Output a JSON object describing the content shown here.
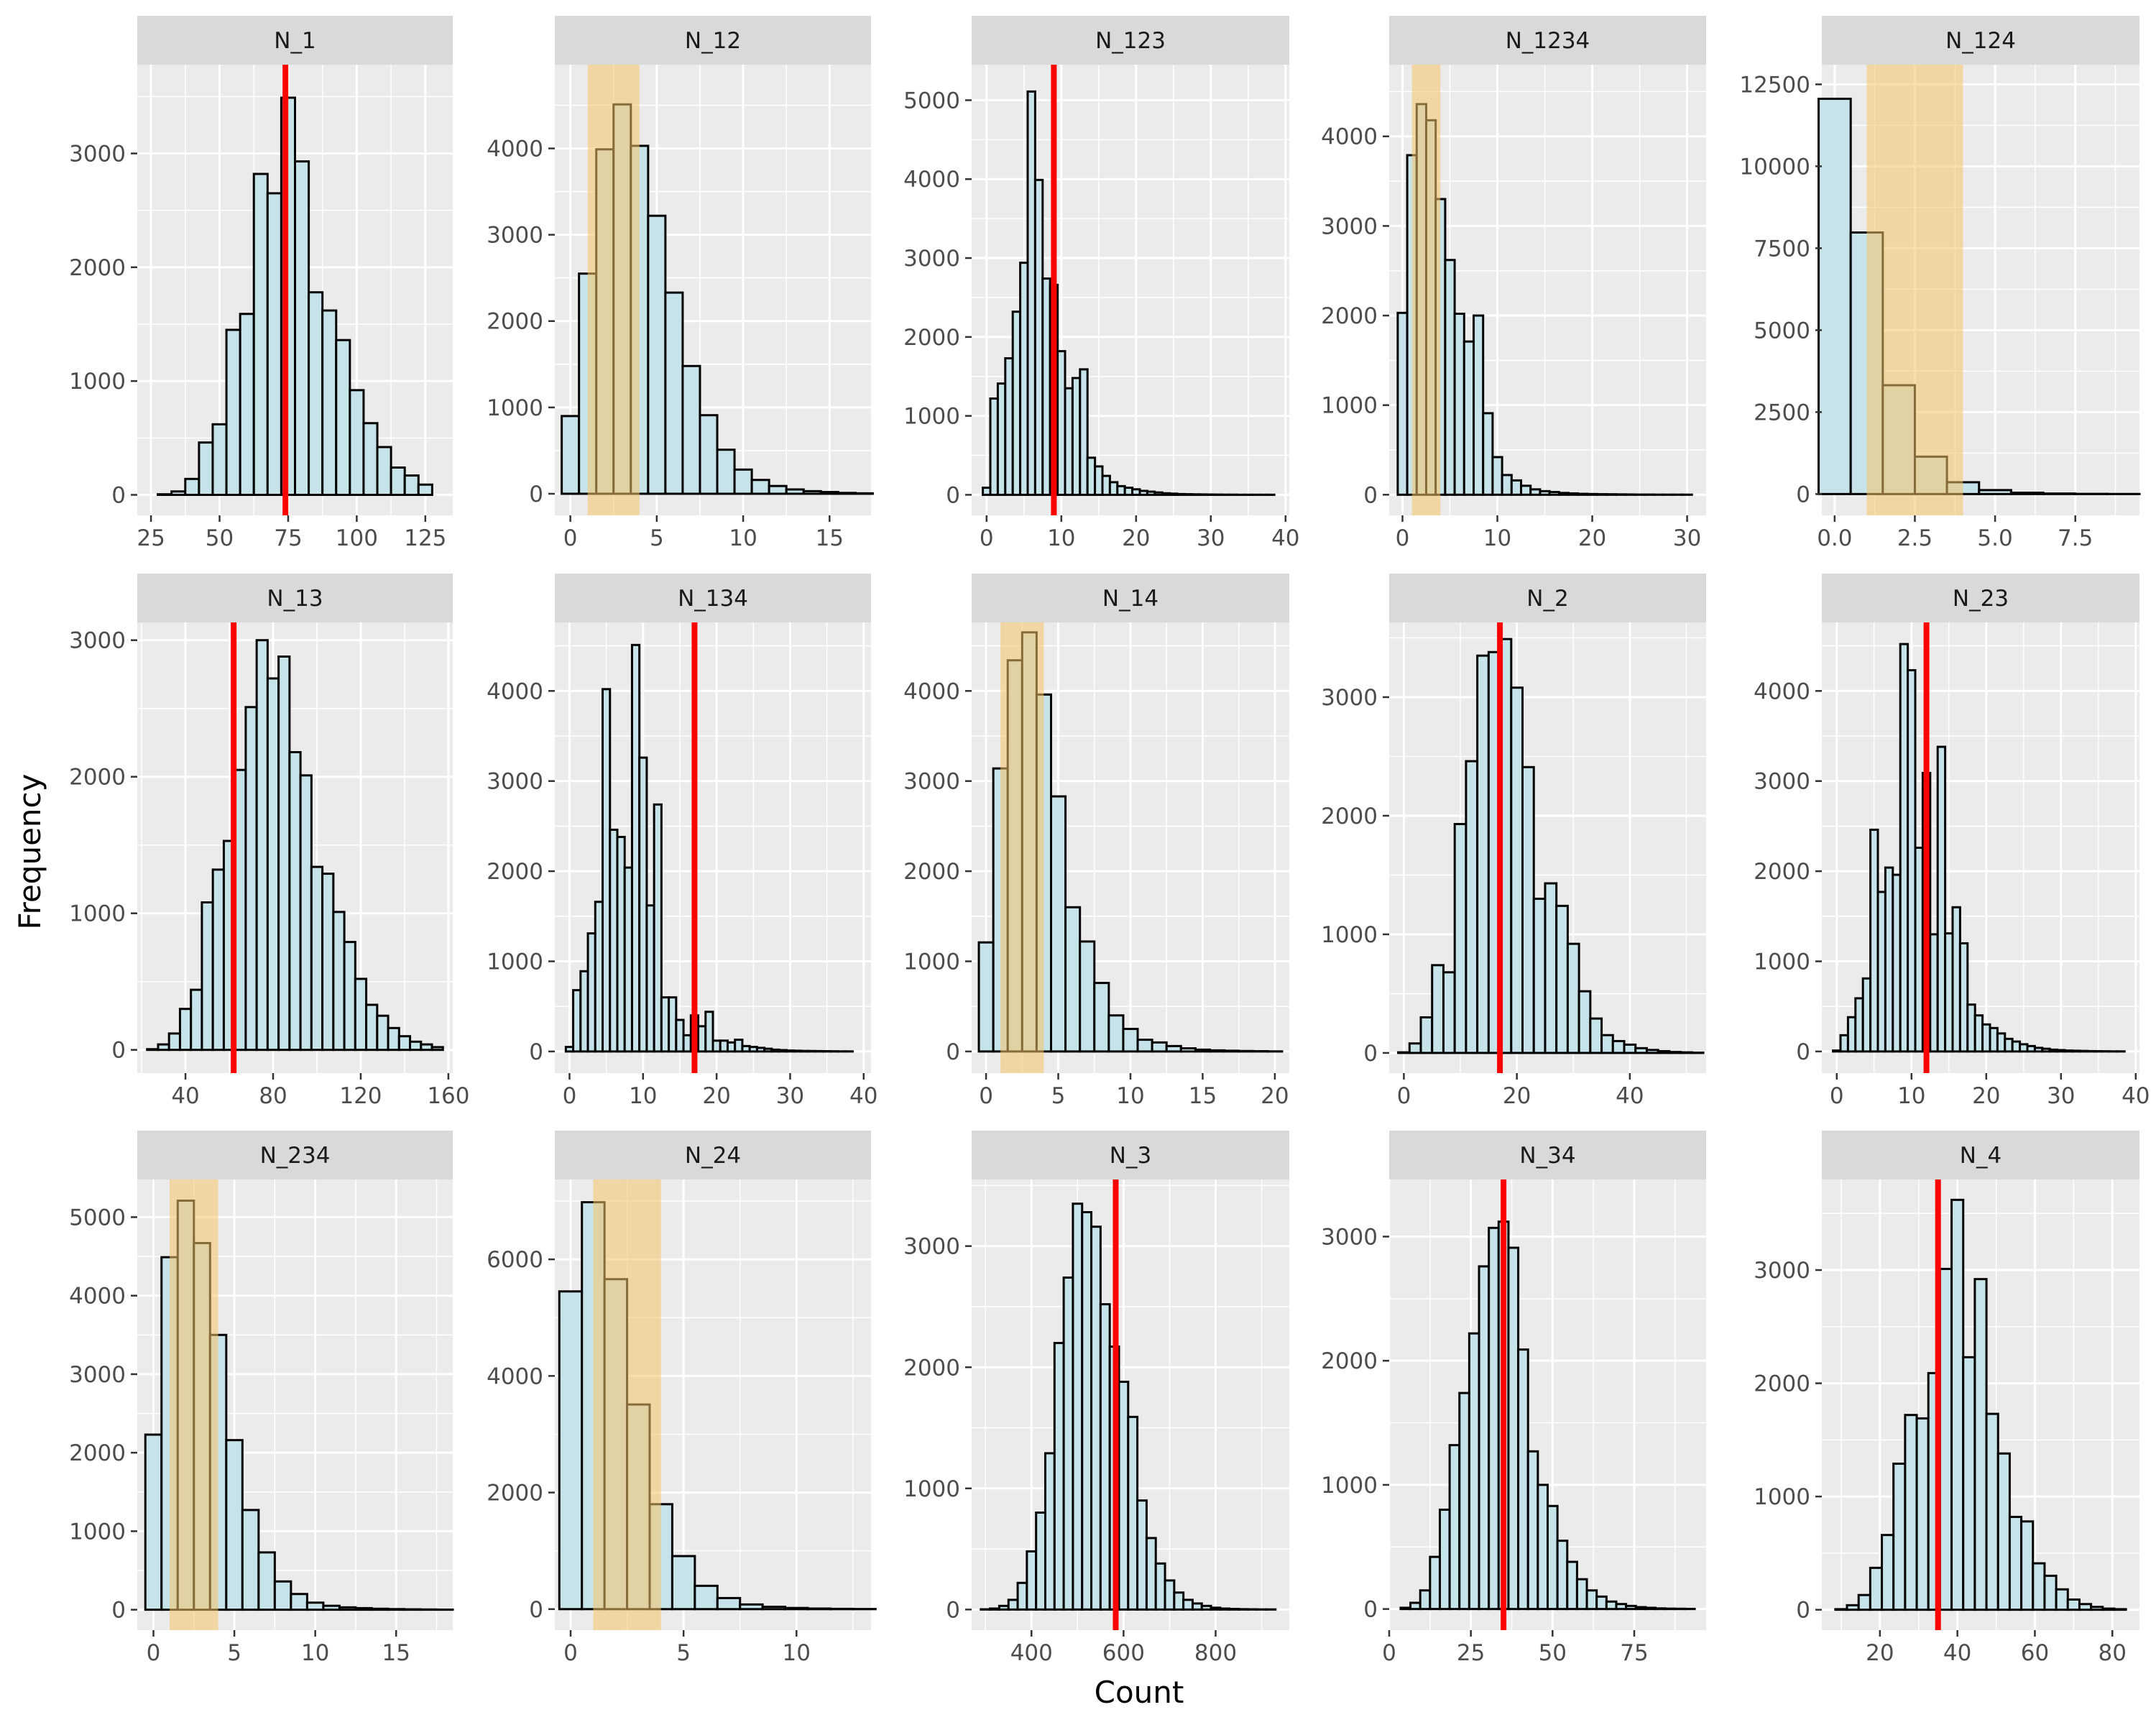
{
  "figure": {
    "xlabel": "Count",
    "ylabel": "Frequency"
  },
  "colors": {
    "panel_bg": "#ebebeb",
    "grid": "#ffffff",
    "strip_bg": "#d9d9d9",
    "bar_fill": "#c7e3ea",
    "bar_stroke": "#000000",
    "observed_line": "#ff0000",
    "interval_band": "#f5c56a",
    "tick_text": "#4d4d4d"
  },
  "chart_data": [
    {
      "type": "bar",
      "title": "N_1",
      "xlim": [
        20,
        135
      ],
      "xticks": [
        25,
        50,
        75,
        100,
        125
      ],
      "ylim": [
        -180,
        3780
      ],
      "yticks": [
        0,
        1000,
        2000,
        3000
      ],
      "observed": 74,
      "band": null,
      "x": [
        30,
        35,
        40,
        45,
        50,
        55,
        60,
        65,
        70,
        75,
        80,
        85,
        90,
        95,
        100,
        105,
        110,
        115,
        120,
        125
      ],
      "values": [
        5,
        30,
        140,
        460,
        620,
        1450,
        1590,
        2820,
        2650,
        3490,
        2930,
        1780,
        1620,
        1360,
        920,
        630,
        420,
        240,
        170,
        90
      ]
    },
    {
      "type": "bar",
      "title": "N_12",
      "xlim": [
        -0.9,
        17.4
      ],
      "xticks": [
        0,
        5,
        10,
        15
      ],
      "ylim": [
        -250,
        4970
      ],
      "yticks": [
        0,
        1000,
        2000,
        3000,
        4000
      ],
      "observed": null,
      "band": [
        1,
        4
      ],
      "x": [
        0,
        1,
        2,
        3,
        4,
        5,
        6,
        7,
        8,
        9,
        10,
        11,
        12,
        13,
        14,
        15,
        16,
        17
      ],
      "values": [
        900,
        2550,
        3990,
        4510,
        4030,
        3220,
        2330,
        1480,
        910,
        510,
        280,
        160,
        90,
        50,
        30,
        20,
        10,
        5
      ]
    },
    {
      "type": "bar",
      "title": "N_123",
      "xlim": [
        -2,
        40.5
      ],
      "xticks": [
        0,
        10,
        20,
        30,
        40
      ],
      "ylim": [
        -260,
        5450
      ],
      "yticks": [
        0,
        1000,
        2000,
        3000,
        4000,
        5000
      ],
      "observed": 9,
      "band": null,
      "x": [
        0,
        1,
        2,
        3,
        4,
        5,
        6,
        7,
        8,
        9,
        10,
        11,
        12,
        13,
        14,
        15,
        16,
        17,
        18,
        19,
        20,
        21,
        22,
        23,
        24,
        25,
        26,
        27,
        28,
        29,
        30,
        31,
        32,
        33,
        34,
        35,
        36,
        37,
        38,
        39
      ],
      "values": [
        90,
        1220,
        1410,
        1730,
        2320,
        2940,
        5110,
        3990,
        2740,
        2660,
        1820,
        1350,
        1480,
        1590,
        470,
        360,
        240,
        160,
        110,
        90,
        70,
        50,
        40,
        30,
        20,
        15,
        10,
        8,
        6,
        5,
        4,
        3,
        2,
        2,
        1,
        1,
        1,
        1,
        1,
        0
      ]
    },
    {
      "type": "bar",
      "title": "N_1234",
      "xlim": [
        -1.4,
        32
      ],
      "xticks": [
        0,
        10,
        20,
        30
      ],
      "ylim": [
        -230,
        4800
      ],
      "yticks": [
        0,
        1000,
        2000,
        3000,
        4000
      ],
      "observed": null,
      "band": [
        1,
        4
      ],
      "x": [
        0,
        1,
        2,
        3,
        4,
        5,
        6,
        7,
        8,
        9,
        10,
        11,
        12,
        13,
        14,
        15,
        16,
        17,
        18,
        19,
        20,
        21,
        22,
        23,
        24,
        25,
        26,
        27,
        28,
        29,
        30,
        31
      ],
      "values": [
        2030,
        3790,
        4360,
        4180,
        3300,
        2620,
        2020,
        1710,
        2000,
        910,
        420,
        220,
        160,
        100,
        60,
        40,
        30,
        20,
        15,
        10,
        8,
        6,
        5,
        4,
        3,
        2,
        2,
        1,
        1,
        1,
        1,
        0
      ]
    },
    {
      "type": "bar",
      "title": "N_124",
      "xlim": [
        -0.4,
        9.5
      ],
      "xticks": [
        0,
        2.5,
        5,
        7.5
      ],
      "xtick_labels": [
        "0.0",
        "2.5",
        "5.0",
        "7.5"
      ],
      "ylim": [
        -650,
        13100
      ],
      "yticks": [
        0,
        2500,
        5000,
        7500,
        10000,
        12500
      ],
      "observed": null,
      "band": [
        1,
        4
      ],
      "x": [
        0,
        1,
        2,
        3,
        4,
        5,
        6,
        7,
        8,
        9
      ],
      "values": [
        12060,
        7980,
        3320,
        1140,
        360,
        120,
        40,
        15,
        5,
        2
      ]
    },
    {
      "type": "bar",
      "title": "N_13",
      "xlim": [
        18,
        162
      ],
      "xticks": [
        40,
        80,
        120,
        160
      ],
      "ylim": [
        -170,
        3130
      ],
      "yticks": [
        0,
        1000,
        2000,
        3000
      ],
      "observed": 62,
      "band": null,
      "x": [
        25,
        30,
        35,
        40,
        45,
        50,
        55,
        60,
        65,
        70,
        75,
        80,
        85,
        90,
        95,
        100,
        105,
        110,
        115,
        120,
        125,
        130,
        135,
        140,
        145,
        150,
        155
      ],
      "values": [
        5,
        40,
        120,
        300,
        440,
        1080,
        1320,
        1530,
        2050,
        2510,
        3000,
        2720,
        2880,
        2180,
        2010,
        1340,
        1290,
        1010,
        790,
        520,
        330,
        250,
        160,
        100,
        60,
        40,
        20
      ]
    },
    {
      "type": "bar",
      "title": "N_134",
      "xlim": [
        -2,
        41
      ],
      "xticks": [
        0,
        10,
        20,
        30,
        40
      ],
      "ylim": [
        -240,
        4760
      ],
      "yticks": [
        0,
        1000,
        2000,
        3000,
        4000
      ],
      "observed": 17,
      "band": null,
      "x": [
        0,
        1,
        2,
        3,
        4,
        5,
        6,
        7,
        8,
        9,
        10,
        11,
        12,
        13,
        14,
        15,
        16,
        17,
        18,
        19,
        20,
        21,
        22,
        23,
        24,
        25,
        26,
        27,
        28,
        29,
        30,
        31,
        32,
        33,
        34,
        35,
        36,
        37,
        38,
        39
      ],
      "values": [
        50,
        680,
        890,
        1310,
        1660,
        4020,
        2460,
        2380,
        2040,
        4510,
        3260,
        1620,
        2740,
        600,
        600,
        350,
        180,
        400,
        280,
        440,
        120,
        120,
        100,
        130,
        60,
        50,
        40,
        30,
        20,
        15,
        10,
        8,
        6,
        5,
        4,
        3,
        2,
        1,
        1,
        0
      ]
    },
    {
      "type": "bar",
      "title": "N_14",
      "xlim": [
        -1,
        21
      ],
      "xticks": [
        0,
        5,
        10,
        15,
        20
      ],
      "ylim": [
        -240,
        4760
      ],
      "yticks": [
        0,
        1000,
        2000,
        3000,
        4000
      ],
      "observed": null,
      "band": [
        1,
        4
      ],
      "x": [
        0,
        1,
        2,
        3,
        4,
        5,
        6,
        7,
        8,
        9,
        10,
        11,
        12,
        13,
        14,
        15,
        16,
        17,
        18,
        19,
        20
      ],
      "values": [
        1210,
        3140,
        4340,
        4650,
        3960,
        2830,
        1600,
        1220,
        760,
        400,
        250,
        130,
        100,
        60,
        35,
        20,
        12,
        8,
        5,
        3,
        1
      ]
    },
    {
      "type": "bar",
      "title": "N_2",
      "xlim": [
        -2.6,
        53.5
      ],
      "xticks": [
        0,
        20,
        40
      ],
      "ylim": [
        -170,
        3630
      ],
      "yticks": [
        0,
        1000,
        2000,
        3000
      ],
      "observed": 17,
      "band": null,
      "x": [
        0,
        2,
        4,
        6,
        8,
        10,
        12,
        14,
        16,
        18,
        20,
        22,
        24,
        26,
        28,
        30,
        32,
        34,
        36,
        38,
        40,
        42,
        44,
        46,
        48,
        50,
        52
      ],
      "values": [
        5,
        80,
        300,
        740,
        680,
        1930,
        2460,
        3350,
        3380,
        3490,
        3080,
        2410,
        1300,
        1430,
        1240,
        920,
        520,
        290,
        150,
        100,
        70,
        40,
        25,
        15,
        8,
        5,
        2
      ]
    },
    {
      "type": "bar",
      "title": "N_23",
      "xlim": [
        -2,
        40.5
      ],
      "xticks": [
        0,
        10,
        20,
        30,
        40
      ],
      "ylim": [
        -240,
        4760
      ],
      "yticks": [
        0,
        1000,
        2000,
        3000,
        4000
      ],
      "observed": 12,
      "band": null,
      "x": [
        0,
        1,
        2,
        3,
        4,
        5,
        6,
        7,
        8,
        9,
        10,
        11,
        12,
        13,
        14,
        15,
        16,
        17,
        18,
        19,
        20,
        21,
        22,
        23,
        24,
        25,
        26,
        27,
        28,
        29,
        30,
        31,
        32,
        33,
        34,
        35,
        36,
        37,
        38,
        39
      ],
      "values": [
        10,
        180,
        380,
        590,
        810,
        2460,
        1770,
        2040,
        1960,
        4520,
        4230,
        2260,
        3090,
        1300,
        3380,
        1310,
        1600,
        1200,
        520,
        400,
        300,
        260,
        200,
        140,
        110,
        80,
        60,
        40,
        30,
        20,
        15,
        10,
        8,
        6,
        4,
        3,
        2,
        1,
        1,
        0
      ]
    },
    {
      "type": "bar",
      "title": "N_234",
      "xlim": [
        -1,
        18.5
      ],
      "xticks": [
        0,
        5,
        10,
        15
      ],
      "ylim": [
        -260,
        5480
      ],
      "yticks": [
        0,
        1000,
        2000,
        3000,
        4000,
        5000
      ],
      "observed": null,
      "band": [
        1,
        4
      ],
      "x": [
        0,
        1,
        2,
        3,
        4,
        5,
        6,
        7,
        8,
        9,
        10,
        11,
        12,
        13,
        14,
        15,
        16,
        17,
        18
      ],
      "values": [
        2230,
        4490,
        5210,
        4670,
        3500,
        2160,
        1270,
        730,
        360,
        200,
        90,
        50,
        30,
        20,
        12,
        8,
        5,
        3,
        1
      ]
    },
    {
      "type": "bar",
      "title": "N_24",
      "xlim": [
        -0.7,
        13.3
      ],
      "xticks": [
        0,
        5,
        10
      ],
      "ylim": [
        -360,
        7370
      ],
      "yticks": [
        0,
        2000,
        4000,
        6000
      ],
      "observed": null,
      "band": [
        1,
        4
      ],
      "x": [
        0,
        1,
        2,
        3,
        4,
        5,
        6,
        7,
        8,
        9,
        10,
        11,
        12,
        13
      ],
      "values": [
        5450,
        6980,
        5660,
        3510,
        1800,
        910,
        400,
        190,
        80,
        40,
        20,
        10,
        5,
        2
      ]
    },
    {
      "type": "bar",
      "title": "N_3",
      "xlim": [
        270,
        960
      ],
      "xticks": [
        400,
        600,
        800
      ],
      "ylim": [
        -170,
        3550
      ],
      "yticks": [
        0,
        1000,
        2000,
        3000
      ],
      "observed": 583,
      "band": null,
      "x": [
        300,
        320,
        340,
        360,
        380,
        400,
        420,
        440,
        460,
        480,
        500,
        520,
        540,
        560,
        580,
        600,
        620,
        640,
        660,
        680,
        700,
        720,
        740,
        760,
        780,
        800,
        820,
        840,
        860,
        880,
        900,
        920
      ],
      "values": [
        2,
        8,
        30,
        80,
        220,
        480,
        800,
        1290,
        2200,
        2740,
        3350,
        3280,
        3160,
        2520,
        2170,
        1880,
        1590,
        900,
        590,
        380,
        240,
        140,
        80,
        50,
        30,
        15,
        8,
        5,
        3,
        2,
        1,
        1
      ]
    },
    {
      "type": "bar",
      "title": "N_34",
      "xlim": [
        0,
        97
      ],
      "xticks": [
        0,
        25,
        50,
        75
      ],
      "ylim": [
        -170,
        3460
      ],
      "yticks": [
        0,
        1000,
        2000,
        3000
      ],
      "observed": 35,
      "band": null,
      "x": [
        5,
        8,
        11,
        14,
        17,
        20,
        23,
        26,
        29,
        32,
        35,
        38,
        41,
        44,
        47,
        50,
        53,
        56,
        59,
        62,
        65,
        68,
        71,
        74,
        77,
        80,
        83,
        86,
        89,
        92
      ],
      "values": [
        10,
        50,
        150,
        420,
        800,
        1320,
        1740,
        2220,
        2760,
        3070,
        3120,
        2910,
        2090,
        1270,
        1000,
        830,
        550,
        380,
        240,
        150,
        100,
        60,
        40,
        25,
        15,
        10,
        5,
        3,
        2,
        1
      ]
    },
    {
      "type": "bar",
      "title": "N_4",
      "xlim": [
        5,
        87
      ],
      "xticks": [
        20,
        40,
        60,
        80
      ],
      "ylim": [
        -180,
        3800
      ],
      "yticks": [
        0,
        1000,
        2000,
        3000
      ],
      "observed": 35,
      "band": null,
      "x": [
        10,
        13,
        16,
        19,
        22,
        25,
        28,
        31,
        34,
        37,
        40,
        43,
        46,
        49,
        52,
        55,
        58,
        61,
        64,
        67,
        70,
        73,
        76,
        79,
        82
      ],
      "values": [
        5,
        40,
        130,
        370,
        660,
        1290,
        1720,
        1690,
        2090,
        3010,
        3620,
        2230,
        2920,
        1730,
        1380,
        820,
        780,
        410,
        300,
        180,
        90,
        50,
        25,
        10,
        5
      ]
    }
  ]
}
